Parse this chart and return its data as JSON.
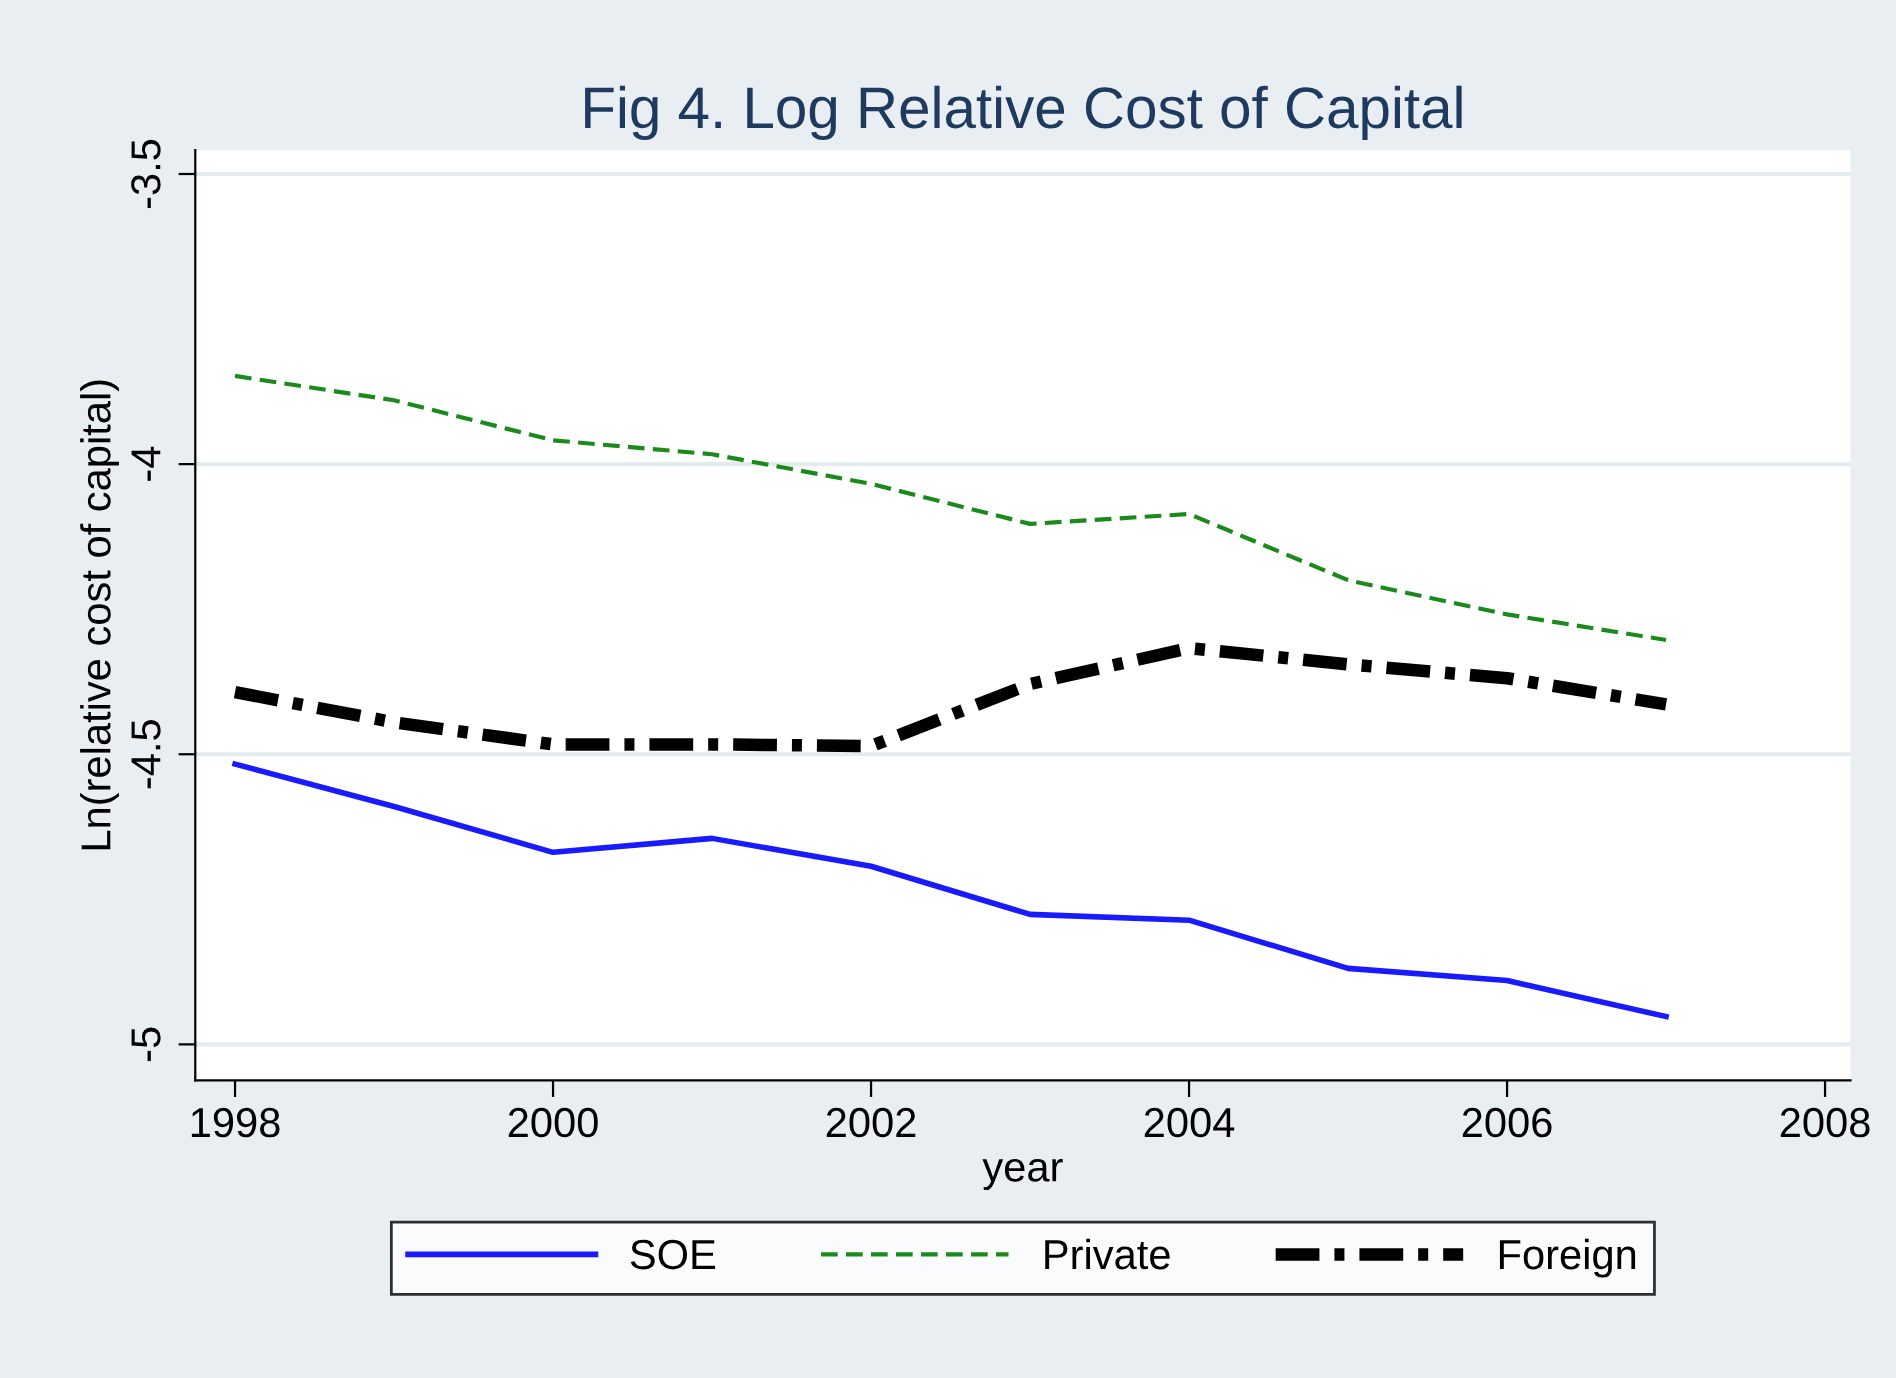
{
  "chart_data": {
    "type": "line",
    "title": "Fig 4. Log Relative Cost of Capital",
    "xlabel": "year",
    "ylabel": "Ln(relative cost of capital)",
    "x": [
      1998,
      1999,
      2000,
      2001,
      2002,
      2003,
      2004,
      2005,
      2006,
      2007
    ],
    "series": [
      {
        "name": "SOE",
        "color": "#1a1aff",
        "line_style": "solid",
        "values": [
          -4.517,
          -4.59,
          -4.669,
          -4.645,
          -4.693,
          -4.776,
          -4.786,
          -4.869,
          -4.89,
          -4.952
        ]
      },
      {
        "name": "Private",
        "color": "#1a8a1a",
        "line_style": "dashed",
        "values": [
          -3.848,
          -3.89,
          -3.959,
          -3.983,
          -4.034,
          -4.103,
          -4.086,
          -4.2,
          -4.259,
          -4.303
        ]
      },
      {
        "name": "Foreign",
        "color": "#000000",
        "line_style": "dashdot",
        "values": [
          -4.393,
          -4.445,
          -4.483,
          -4.483,
          -4.486,
          -4.379,
          -4.317,
          -4.345,
          -4.369,
          -4.414
        ]
      }
    ],
    "xlim": [
      1997.75,
      2008.16
    ],
    "ylim": [
      -5.062,
      -3.459
    ],
    "xticks": [
      1998,
      2000,
      2002,
      2004,
      2006,
      2008
    ],
    "yticks": [
      -5,
      -4.5,
      -4,
      -3.5
    ],
    "grid": "y",
    "legend": "bottom",
    "marker": "none"
  }
}
